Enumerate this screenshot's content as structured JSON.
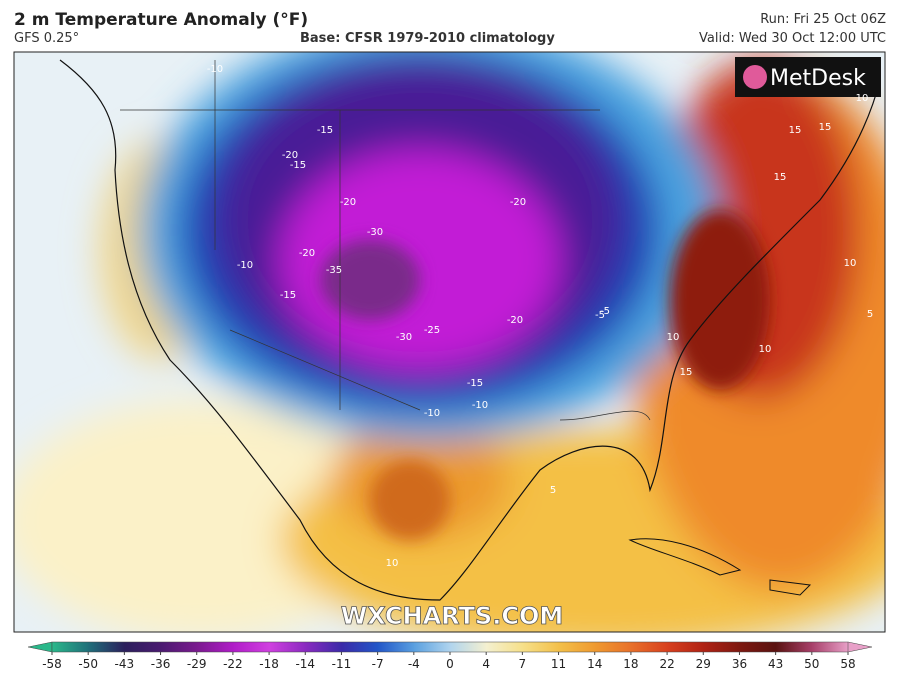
{
  "header": {
    "title": "2 m Temperature Anomaly (°F)",
    "model": "GFS 0.25°",
    "base": "Base: CFSR 1979-2010 climatology",
    "run": "Run: Fri 25 Oct 06Z",
    "valid": "Valid: Wed 30 Oct 12:00 UTC"
  },
  "map": {
    "logo": "MetDesk",
    "watermark": "WXCHARTS.COM",
    "contour_labels": [
      "-10",
      "-15",
      "-15",
      "-20",
      "-20",
      "-30",
      "-35",
      "-20",
      "-25",
      "-30",
      "-20",
      "-15",
      "-10",
      "-10",
      "-15",
      "-20",
      "-5",
      "15",
      "15",
      "15",
      "10",
      "10",
      "15",
      "10",
      "10",
      "5",
      "5",
      "10",
      "-10",
      "-5"
    ]
  },
  "colorbar": {
    "ticks": [
      -58,
      -50,
      -43,
      -36,
      -29,
      -22,
      -18,
      -14,
      -11,
      -7,
      -4,
      0,
      4,
      7,
      11,
      14,
      18,
      22,
      29,
      36,
      43,
      50,
      58
    ]
  }
}
